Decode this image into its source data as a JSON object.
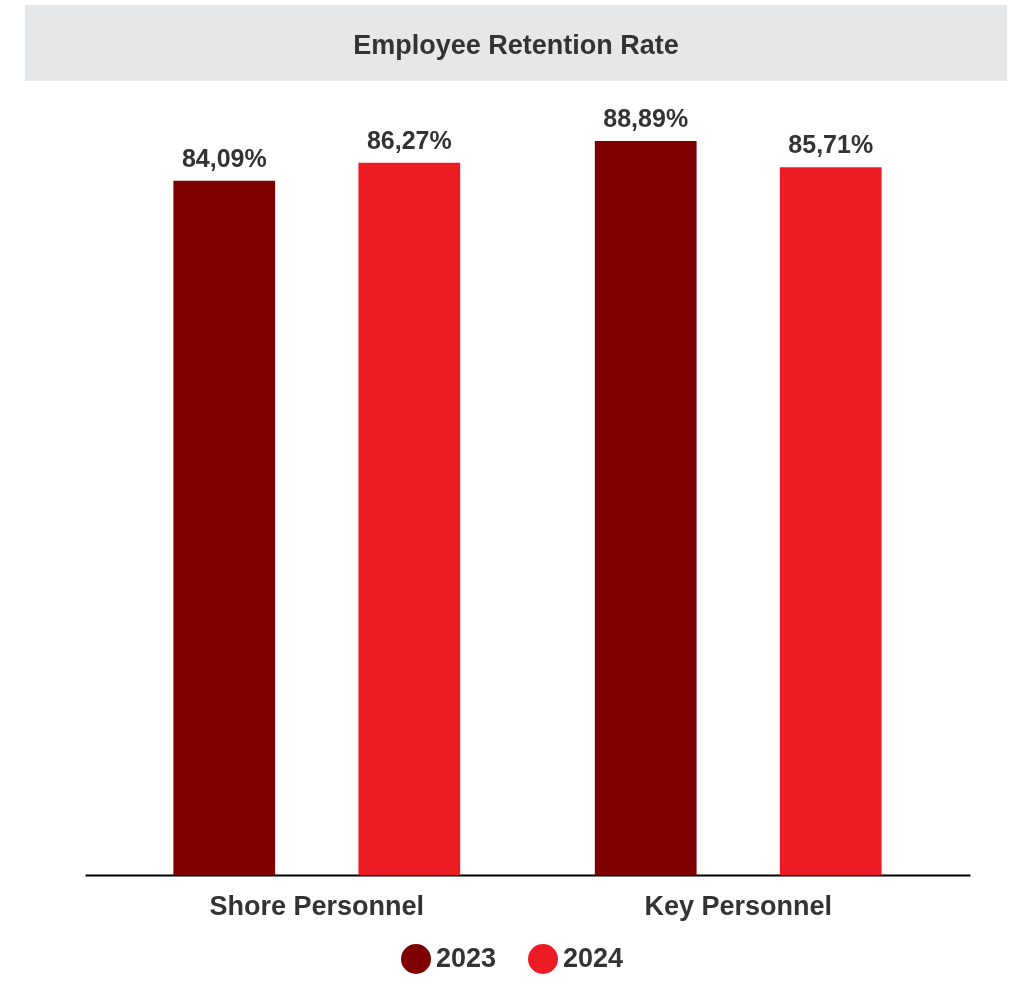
{
  "chart_data": {
    "type": "bar",
    "title": "Employee Retention Rate",
    "categories": [
      "Shore Personnel",
      "Key Personnel"
    ],
    "series": [
      {
        "name": "2023",
        "color": "#7f0000",
        "values": [
          84.09,
          88.89
        ],
        "value_labels": [
          "84,09%",
          "88,89%"
        ]
      },
      {
        "name": "2024",
        "color": "#ed1c24",
        "values": [
          86.27,
          85.71
        ],
        "value_labels": [
          "86,27%",
          "85,71%"
        ]
      }
    ],
    "tick_labels": "x",
    "legend": "bottom"
  }
}
